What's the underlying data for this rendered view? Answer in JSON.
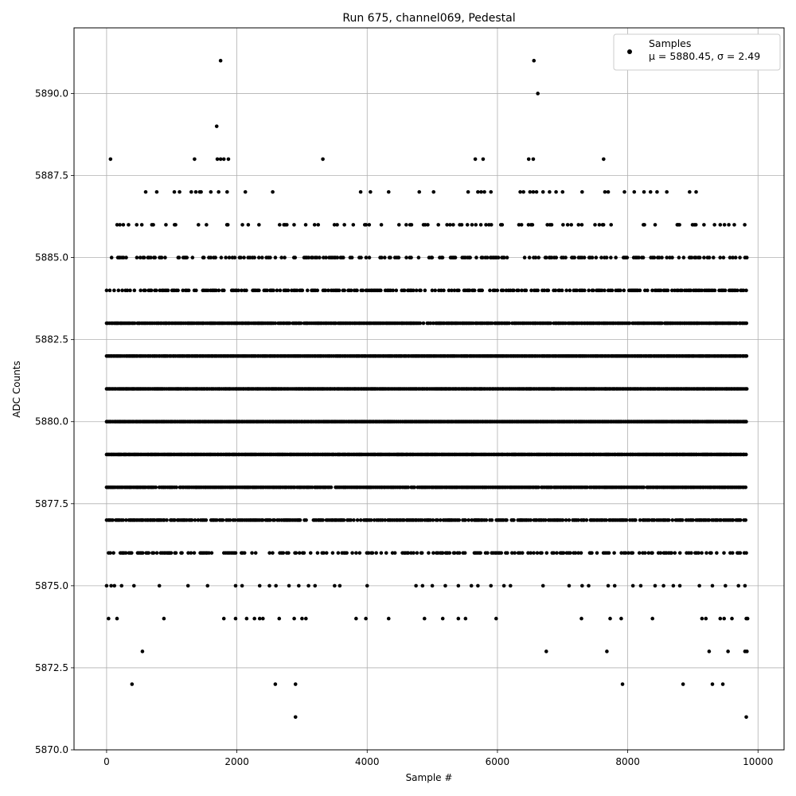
{
  "chart_data": {
    "type": "scatter",
    "title": "Run 675, channel069, Pedestal",
    "xlabel": "Sample #",
    "ylabel": "ADC Counts",
    "xlim": [
      -500,
      10400
    ],
    "ylim": [
      5870,
      5892
    ],
    "xticks": [
      0,
      2000,
      4000,
      6000,
      8000,
      10000
    ],
    "yticks": [
      5870.0,
      5872.5,
      5875.0,
      5877.5,
      5880.0,
      5882.5,
      5885.0,
      5887.5,
      5890.0
    ],
    "xtick_labels": [
      "0",
      "2000",
      "4000",
      "6000",
      "8000",
      "10000"
    ],
    "ytick_labels": [
      "5870.0",
      "5872.5",
      "5875.0",
      "5877.5",
      "5880.0",
      "5882.5",
      "5885.0",
      "5887.5",
      "5890.0"
    ],
    "grid": true,
    "legend": {
      "placement": "top-right",
      "series_name": "Samples",
      "stats_text": "μ = 5880.45, σ = 2.49"
    },
    "marker_color": "#000000",
    "sample_count": 9830,
    "stats": {
      "mean": 5880.45,
      "std": 2.49
    },
    "level_density": [
      {
        "y": 5871,
        "x": [
          2900,
          9820
        ]
      },
      {
        "y": 5872,
        "x": [
          390,
          2590,
          2900,
          7920,
          8850,
          9300,
          9460
        ]
      },
      {
        "y": 5873,
        "x": [
          550,
          6750,
          7680,
          9250,
          9540,
          9800,
          9830
        ]
      },
      {
        "y": 5874,
        "x": [
          30,
          160,
          880,
          1800,
          1980,
          2150,
          2270,
          2350,
          2400,
          2650,
          2880,
          3000,
          3060,
          3830,
          3980,
          4330,
          4880,
          5160,
          5400,
          5510,
          5980,
          7290,
          7730,
          7900,
          8380,
          9140,
          9200,
          9420,
          9480,
          9600,
          9820,
          9840
        ]
      },
      {
        "y": 5875,
        "x": [
          0,
          70,
          120,
          230,
          420,
          810,
          1250,
          1550,
          1980,
          2080,
          2350,
          2500,
          2600,
          2800,
          2950,
          3100,
          3200,
          3500,
          3580,
          4000,
          4750,
          4850,
          5000,
          5200,
          5400,
          5600,
          5700,
          5900,
          6100,
          6200,
          6700,
          7100,
          7300,
          7400,
          7700,
          7800,
          8080,
          8200,
          8420,
          8550,
          8700,
          8800,
          9100,
          9300,
          9500,
          9700,
          9800
        ]
      },
      {
        "y": 5876,
        "d": 0.45
      },
      {
        "y": 5877,
        "d": 0.8
      },
      {
        "y": 5878,
        "d": 0.95
      },
      {
        "y": 5879,
        "d": 1.0
      },
      {
        "y": 5880,
        "d": 1.0
      },
      {
        "y": 5881,
        "d": 1.0
      },
      {
        "y": 5882,
        "d": 1.0
      },
      {
        "y": 5883,
        "d": 0.95
      },
      {
        "y": 5884,
        "d": 0.6
      },
      {
        "y": 5885,
        "d": 0.45
      },
      {
        "y": 5886,
        "d": 0.18
      },
      {
        "y": 5887,
        "x": [
          600,
          770,
          1040,
          1120,
          1300,
          1370,
          1430,
          1450,
          1600,
          1720,
          1850,
          2130,
          2550,
          3900,
          4050,
          4330,
          4800,
          5020,
          5550,
          5700,
          5750,
          5800,
          5900,
          6350,
          6400,
          6500,
          6550,
          6600,
          6700,
          6800,
          6900,
          7000,
          7300,
          7650,
          7700,
          7950,
          8100,
          8250,
          8350,
          8450,
          8600,
          8950,
          9050
        ]
      },
      {
        "y": 5888,
        "x": [
          60,
          1350,
          1700,
          1750,
          1800,
          1870,
          3320,
          5660,
          5780,
          6480,
          6550,
          7630
        ]
      },
      {
        "y": 5889,
        "x": [
          1690
        ]
      },
      {
        "y": 5890,
        "x": [
          6620
        ]
      },
      {
        "y": 5891,
        "x": [
          1750,
          6560
        ]
      }
    ]
  }
}
